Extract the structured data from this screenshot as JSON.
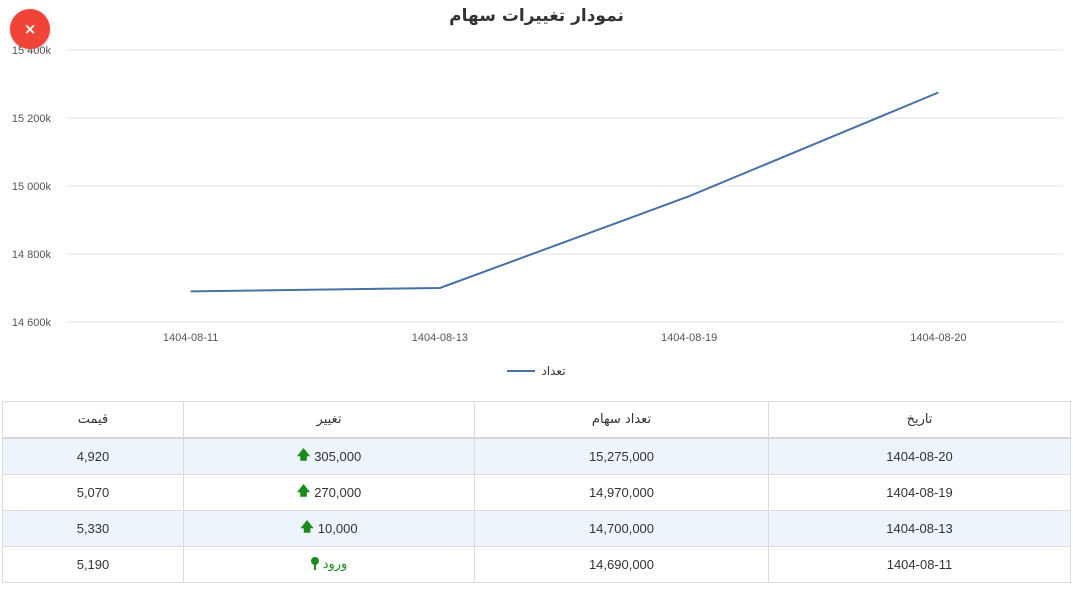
{
  "close_button": {
    "label": "×"
  },
  "chart_title": "نمودار تغییرات سهام",
  "legend": {
    "label": "تعداد",
    "color": "#4672a6"
  },
  "chart_data": {
    "type": "line",
    "title": "نمودار تغییرات سهام",
    "xlabel": "",
    "ylabel": "",
    "categories": [
      "1404-08-11",
      "1404-08-13",
      "1404-08-19",
      "1404-08-20"
    ],
    "series": [
      {
        "name": "تعداد",
        "color": "#4672a6",
        "values": [
          14690000,
          14700000,
          14970000,
          15275000
        ]
      }
    ],
    "y_ticks": [
      "14 600k",
      "14 800k",
      "15 000k",
      "15 200k",
      "15 400k"
    ],
    "ylim": [
      14600000,
      15400000
    ],
    "grid": true,
    "legend_position": "bottom"
  },
  "table": {
    "headers": [
      "تاریخ",
      "تعداد سهام",
      "تغییر",
      "قیمت"
    ],
    "rows": [
      {
        "date": "1404-08-20",
        "shares": "15,275,000",
        "change": "305,000",
        "change_type": "up",
        "price": "4,920"
      },
      {
        "date": "1404-08-19",
        "shares": "14,970,000",
        "change": "270,000",
        "change_type": "up",
        "price": "5,070"
      },
      {
        "date": "1404-08-13",
        "shares": "14,700,000",
        "change": "10,000",
        "change_type": "up",
        "price": "5,330"
      },
      {
        "date": "1404-08-11",
        "shares": "14,690,000",
        "change": "ورود",
        "change_type": "entry",
        "price": "5,190"
      }
    ]
  },
  "icons": {
    "up": "arrow-up-icon",
    "entry": "pin-icon"
  },
  "colors": {
    "line": "#4672a6",
    "positive": "#1a8a1a",
    "close_button": "#f04438",
    "row_highlight": "#edf4fc"
  }
}
